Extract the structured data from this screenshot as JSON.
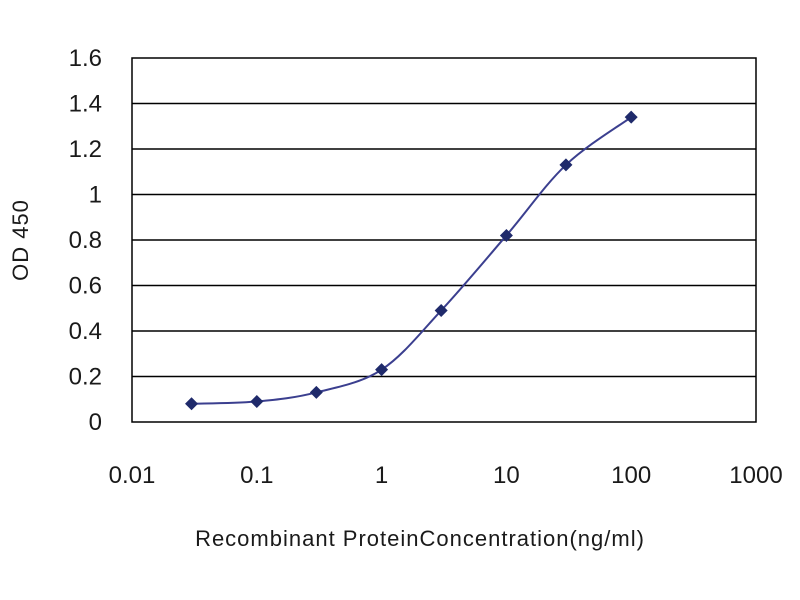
{
  "chart_data": {
    "type": "scatter",
    "title": "",
    "xlabel": "Recombinant ProteinConcentration(ng/ml)",
    "ylabel": "OD 450",
    "xscale": "log",
    "xlim": [
      0.01,
      1000
    ],
    "ylim": [
      0,
      1.6
    ],
    "x_ticks": [
      "0.01",
      "0.1",
      "1",
      "10",
      "100",
      "1000"
    ],
    "y_ticks": [
      "0",
      "0.2",
      "0.4",
      "0.6",
      "0.8",
      "1",
      "1.2",
      "1.4",
      "1.6"
    ],
    "grid": "horizontal",
    "legend": "none",
    "series": [
      {
        "x": [
          0.03,
          0.1,
          0.3,
          1,
          3,
          10,
          30,
          100
        ],
        "y": [
          0.08,
          0.09,
          0.13,
          0.23,
          0.49,
          0.82,
          1.13,
          1.34
        ]
      }
    ],
    "colors": {
      "line": "#3b3f8f",
      "marker": "#1f2a6b",
      "grid": "#000000",
      "plot_bg": "#ffffff"
    }
  }
}
